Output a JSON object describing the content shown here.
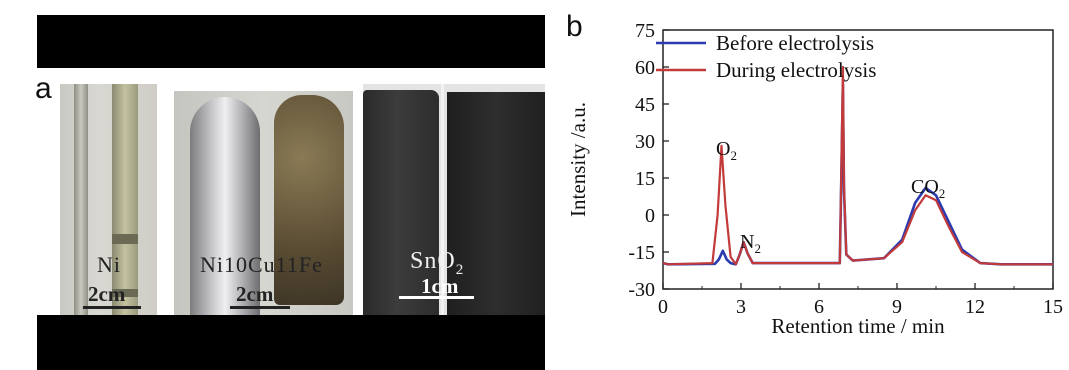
{
  "panel_a": {
    "label": "a",
    "samples": [
      {
        "name": "Ni",
        "scale": "2cm"
      },
      {
        "name": "Ni10Cu11Fe",
        "scale": "2cm"
      },
      {
        "name": "SnO2",
        "name_main": "SnO",
        "name_sub": "2",
        "scale": "1cm"
      }
    ]
  },
  "panel_b": {
    "label": "b",
    "legend": [
      "Before electrolysis",
      "During electrolysis"
    ],
    "peak_labels": {
      "o2": "O",
      "o2_sub": "2",
      "n2": "N",
      "n2_sub": "2",
      "co2": "CO",
      "co2_sub": "2"
    },
    "colors": {
      "before": "#2a3bb0",
      "during": "#c23a3a"
    }
  },
  "chart_data": {
    "type": "line",
    "xlabel": "Retention time / min",
    "ylabel": "Intensity /a.u.",
    "xlim": [
      0,
      15
    ],
    "ylim": [
      -30,
      75
    ],
    "xticks": [
      0,
      3,
      6,
      9,
      12,
      15
    ],
    "yticks": [
      -30,
      -15,
      0,
      15,
      30,
      45,
      60,
      75
    ],
    "legend_position": "top-left",
    "series": [
      {
        "name": "Before electrolysis",
        "x": [
          0,
          0.2,
          2.0,
          2.15,
          2.3,
          2.45,
          2.6,
          2.8,
          2.95,
          3.1,
          3.25,
          3.45,
          3.7,
          5.5,
          6.8,
          6.85,
          6.92,
          6.96,
          7.05,
          7.3,
          8.5,
          9.2,
          9.7,
          10.1,
          10.5,
          11.0,
          11.5,
          12.2,
          13.0,
          15
        ],
        "y": [
          -19.5,
          -20,
          -19.8,
          -18,
          -14.5,
          -18,
          -19.5,
          -20,
          -16,
          -11,
          -15.5,
          -19.5,
          -19.5,
          -19.5,
          -19.5,
          10,
          53,
          10,
          -16,
          -18.5,
          -17.5,
          -10,
          5,
          11,
          8,
          -3,
          -14,
          -19.5,
          -20,
          -20
        ]
      },
      {
        "name": "During electrolysis",
        "x": [
          0,
          0.2,
          1.9,
          2.1,
          2.25,
          2.4,
          2.6,
          2.8,
          2.95,
          3.1,
          3.25,
          3.45,
          3.7,
          5.5,
          6.8,
          6.85,
          6.92,
          6.96,
          7.05,
          7.3,
          8.5,
          9.2,
          9.7,
          10.1,
          10.5,
          11.0,
          11.5,
          12.2,
          13.0,
          15
        ],
        "y": [
          -19.5,
          -20,
          -19.5,
          0,
          28,
          4,
          -17,
          -20,
          -16,
          -11,
          -15.5,
          -19.5,
          -19.5,
          -19.5,
          -19.5,
          12,
          60,
          12,
          -16,
          -18.5,
          -17.5,
          -11,
          2,
          8,
          6,
          -5,
          -15,
          -19.5,
          -20,
          -20
        ]
      }
    ]
  }
}
